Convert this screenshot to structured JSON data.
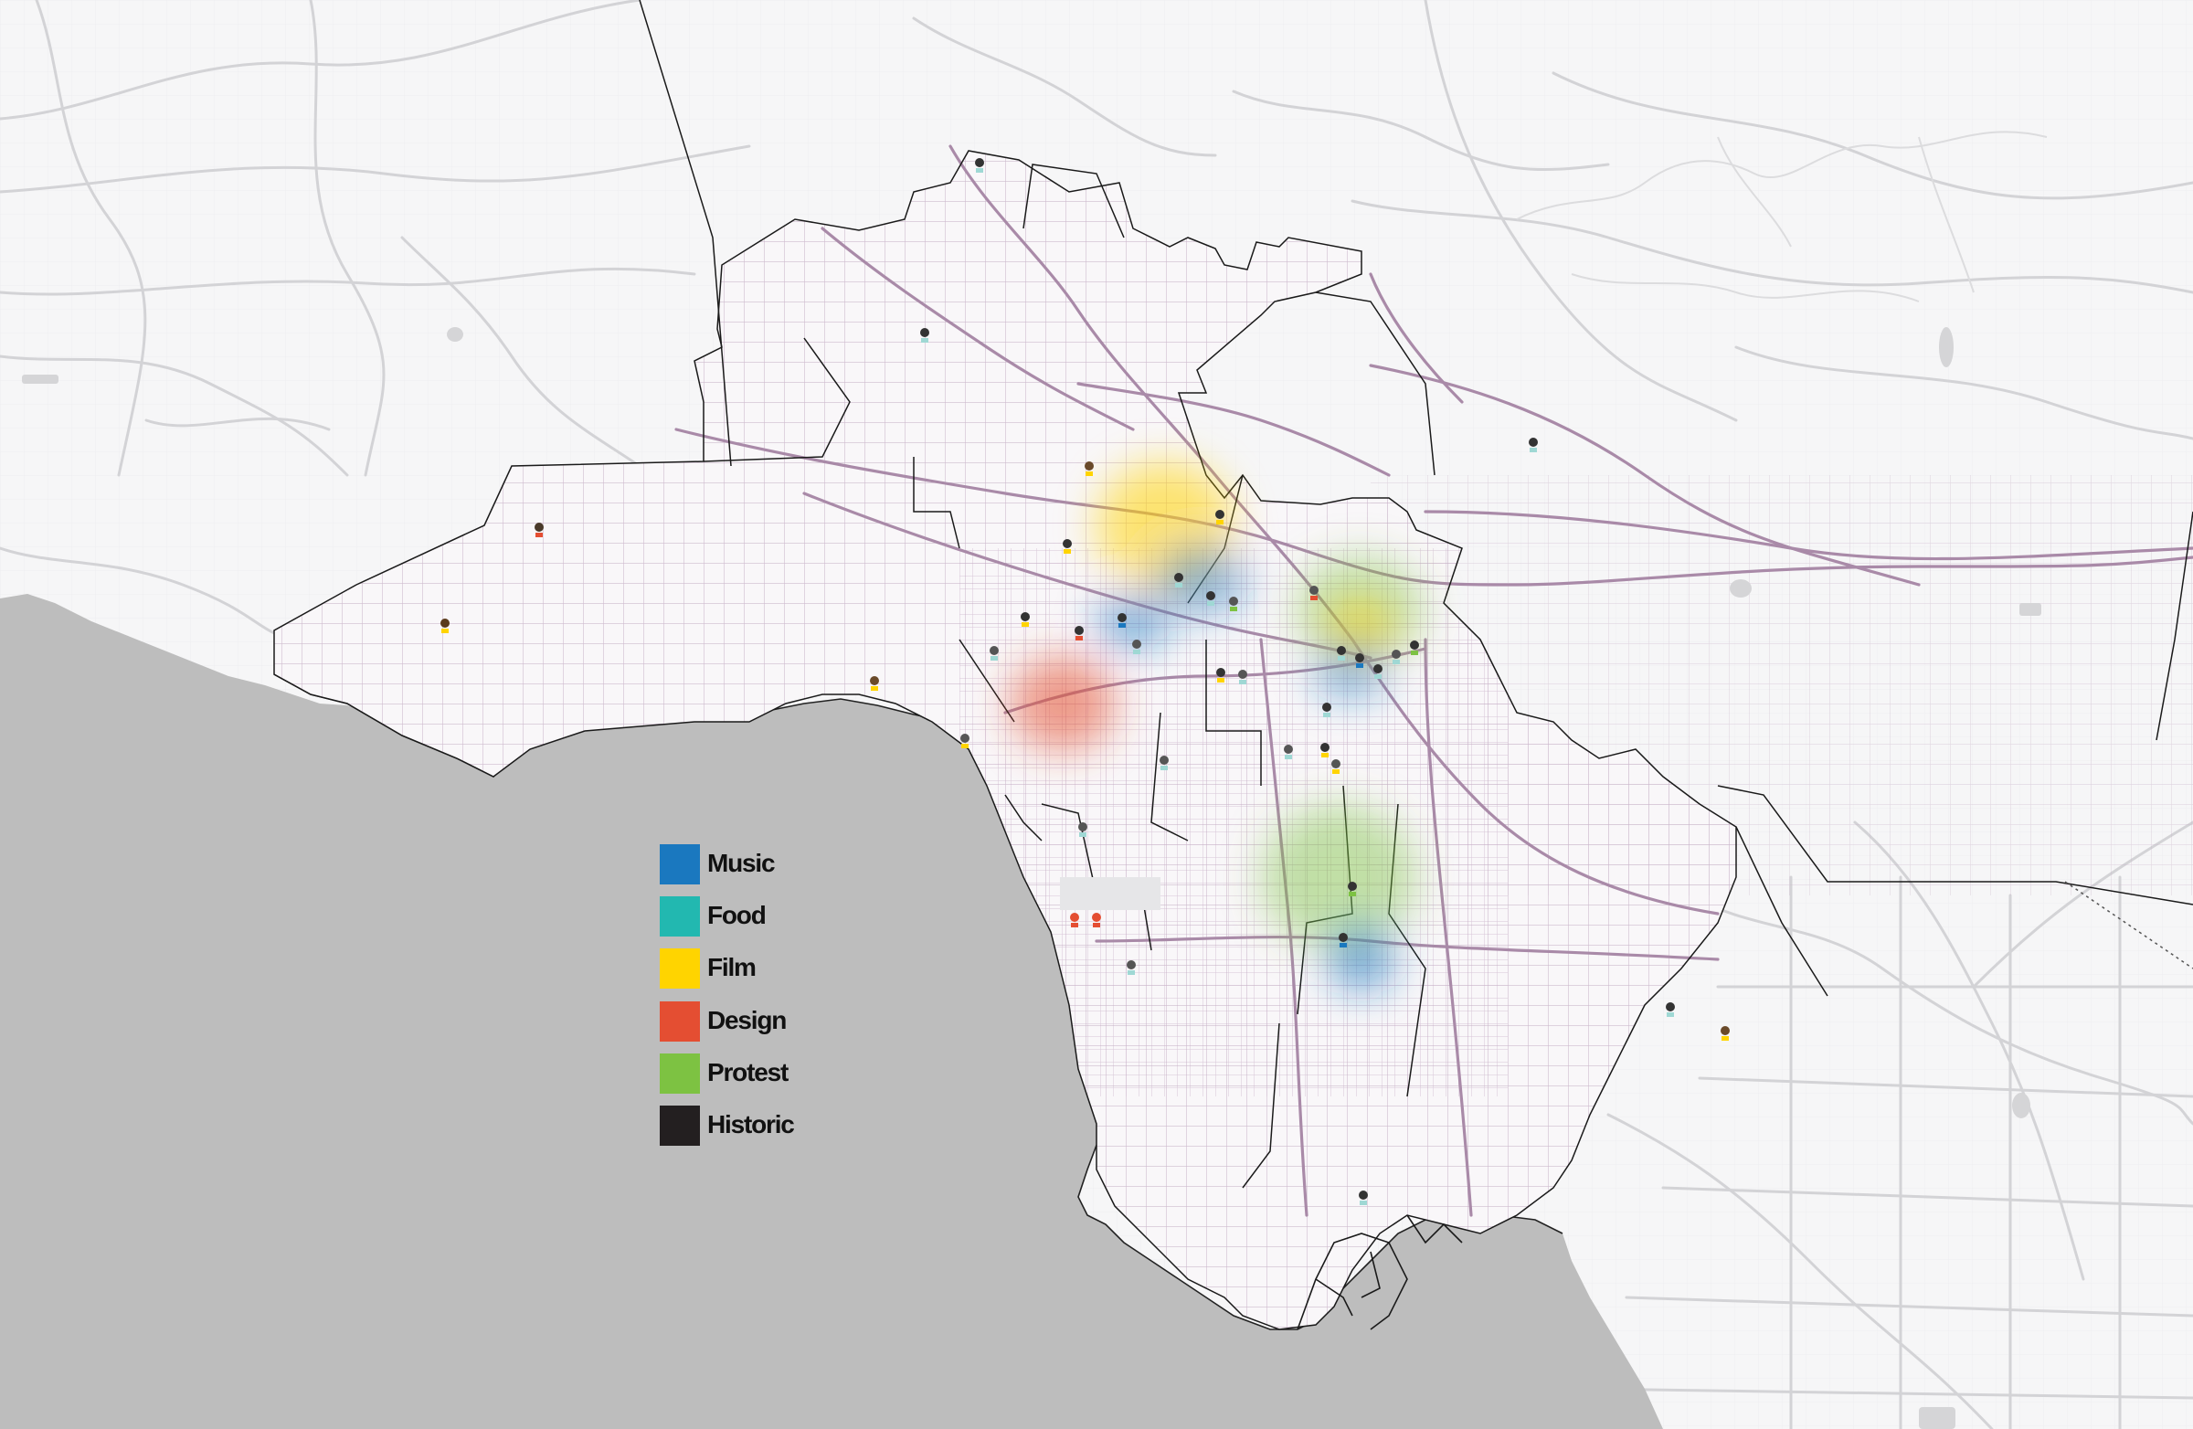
{
  "map": {
    "colors": {
      "land": "#f6f6f7",
      "ocean": "#bdbdbd",
      "road": "#d6d6d8",
      "city_street": "#b89ab8",
      "boundary": "#1a1a1a"
    }
  },
  "legend": {
    "items": [
      {
        "label": "Music",
        "color": "#1a78bf"
      },
      {
        "label": "Food",
        "color": "#22b8b0"
      },
      {
        "label": "Film",
        "color": "#ffd400"
      },
      {
        "label": "Design",
        "color": "#e44e32"
      },
      {
        "label": "Protest",
        "color": "#7dc242"
      },
      {
        "label": "Historic",
        "color": "#231f20"
      }
    ]
  },
  "clusters": [
    {
      "category": "Film",
      "color": "#ffd400"
    },
    {
      "category": "Music",
      "color": "#1a78bf"
    },
    {
      "category": "Music",
      "color": "#1a78bf"
    },
    {
      "category": "Protest",
      "color": "#7dc242"
    },
    {
      "category": "Film",
      "color": "#ffd400"
    },
    {
      "category": "Music",
      "color": "#1a78bf"
    },
    {
      "category": "Design",
      "color": "#e44e32"
    },
    {
      "category": "Protest",
      "color": "#7dc242"
    },
    {
      "category": "Music",
      "color": "#1a78bf"
    }
  ]
}
